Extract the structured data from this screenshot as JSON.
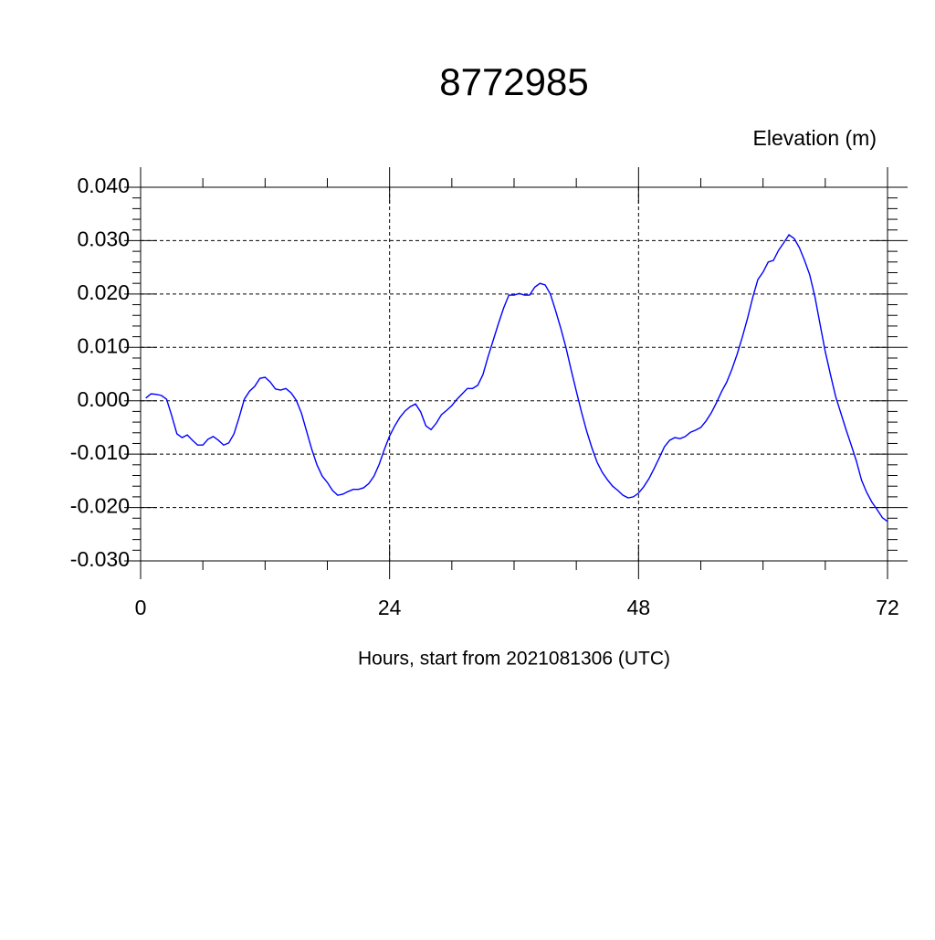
{
  "chart_data": {
    "type": "line",
    "title": "8772985",
    "ylabel": "Elevation (m)",
    "xlabel": "Hours, start from 2021081306 (UTC)",
    "x": [
      0.5,
      1,
      1.5,
      2,
      2.5,
      3,
      3.5,
      4,
      4.5,
      5,
      5.5,
      6,
      6.5,
      7,
      7.5,
      8,
      8.5,
      9,
      9.5,
      10,
      10.5,
      11,
      11.5,
      12,
      12.5,
      13,
      13.5,
      14,
      14.5,
      15,
      15.5,
      16,
      16.5,
      17,
      17.5,
      18,
      18.5,
      19,
      19.5,
      20,
      20.5,
      21,
      21.5,
      22,
      22.5,
      23,
      23.5,
      24,
      24.5,
      25,
      25.5,
      26,
      26.5,
      27,
      27.5,
      28,
      28.5,
      29,
      29.5,
      30,
      30.5,
      31,
      31.5,
      32,
      32.5,
      33,
      33.5,
      34,
      34.5,
      35,
      35.5,
      36,
      36.5,
      37,
      37.5,
      38,
      38.5,
      39,
      39.5,
      40,
      40.5,
      41,
      41.5,
      42,
      42.5,
      43,
      43.5,
      44,
      44.5,
      45,
      45.5,
      46,
      46.5,
      47,
      47.5,
      48,
      48.5,
      49,
      49.5,
      50,
      50.5,
      51,
      51.5,
      52,
      52.5,
      53,
      53.5,
      54,
      54.5,
      55,
      55.5,
      56,
      56.5,
      57,
      57.5,
      58,
      58.5,
      59,
      59.5,
      60,
      60.5,
      61,
      61.5,
      62,
      62.5,
      63,
      63.5,
      64,
      64.5,
      65,
      65.5,
      66,
      66.5,
      67,
      67.5,
      68,
      68.5,
      69,
      69.5,
      70,
      70.5,
      71,
      71.5,
      72
    ],
    "series": [
      {
        "name": "Elevation",
        "color": "#0000ff",
        "values": [
          0.0005,
          0.0013,
          0.0012,
          0.001,
          0.0003,
          -0.0028,
          -0.0062,
          -0.0069,
          -0.0064,
          -0.0074,
          -0.0083,
          -0.0083,
          -0.0072,
          -0.0067,
          -0.0074,
          -0.0083,
          -0.0079,
          -0.0062,
          -0.0031,
          0.0003,
          0.0018,
          0.0027,
          0.0042,
          0.0044,
          0.0035,
          0.0022,
          0.002,
          0.0023,
          0.0015,
          0.0001,
          -0.0023,
          -0.0057,
          -0.0091,
          -0.012,
          -0.0141,
          -0.0153,
          -0.0168,
          -0.0177,
          -0.0175,
          -0.017,
          -0.0166,
          -0.0166,
          -0.0163,
          -0.0155,
          -0.0141,
          -0.0119,
          -0.0091,
          -0.0066,
          -0.0047,
          -0.0031,
          -0.0019,
          -0.0011,
          -0.0006,
          -0.0021,
          -0.0047,
          -0.0054,
          -0.0042,
          -0.0026,
          -0.0018,
          -0.0009,
          0.0003,
          0.0013,
          0.0023,
          0.0023,
          0.0029,
          0.0049,
          0.0083,
          0.0114,
          0.0145,
          0.0174,
          0.0198,
          0.0198,
          0.0201,
          0.0198,
          0.0198,
          0.0213,
          0.022,
          0.0217,
          0.02,
          0.0169,
          0.0136,
          0.01,
          0.0058,
          0.0018,
          -0.0021,
          -0.0057,
          -0.0088,
          -0.0115,
          -0.0134,
          -0.0148,
          -0.016,
          -0.0168,
          -0.0177,
          -0.0182,
          -0.018,
          -0.0173,
          -0.0161,
          -0.0146,
          -0.0127,
          -0.0107,
          -0.0086,
          -0.0074,
          -0.0069,
          -0.0071,
          -0.0067,
          -0.0059,
          -0.0055,
          -0.005,
          -0.0038,
          -0.0023,
          -0.0004,
          0.0017,
          0.0035,
          0.0059,
          0.0087,
          0.0119,
          0.0154,
          0.0193,
          0.0227,
          0.0241,
          0.026,
          0.0263,
          0.0282,
          0.0296,
          0.0311,
          0.0304,
          0.0287,
          0.0263,
          0.0236,
          0.0195,
          0.0143,
          0.0092,
          0.0049,
          0.0008,
          -0.0023,
          -0.0054,
          -0.0083,
          -0.0113,
          -0.0149,
          -0.0172,
          -0.019,
          -0.0204,
          -0.0219,
          -0.0226
        ]
      }
    ],
    "xlim": [
      0,
      72
    ],
    "xticks": [
      0,
      24,
      48,
      72
    ],
    "xminorticks": [
      6,
      12,
      18,
      30,
      36,
      42,
      54,
      60,
      66
    ],
    "ylim": [
      -0.03,
      0.04
    ],
    "yticks": [
      {
        "value": -0.03,
        "label": "-0.030"
      },
      {
        "value": -0.02,
        "label": "-0.020"
      },
      {
        "value": -0.01,
        "label": "-0.010"
      },
      {
        "value": 0,
        "label": "0.000"
      },
      {
        "value": 0.01,
        "label": "0.010"
      },
      {
        "value": 0.02,
        "label": "0.020"
      },
      {
        "value": 0.03,
        "label": "0.030"
      },
      {
        "value": 0.04,
        "label": "0.040"
      }
    ],
    "yminorticks": [
      -0.028,
      -0.026,
      -0.024,
      -0.022,
      -0.018,
      -0.016,
      -0.014,
      -0.012,
      -0.008,
      -0.006,
      -0.004,
      -0.002,
      0.002,
      0.004,
      0.006,
      0.008,
      0.012,
      0.014,
      0.016,
      0.018,
      0.022,
      0.024,
      0.026,
      0.028,
      0.032,
      0.034,
      0.036,
      0.038
    ],
    "grid": true
  }
}
